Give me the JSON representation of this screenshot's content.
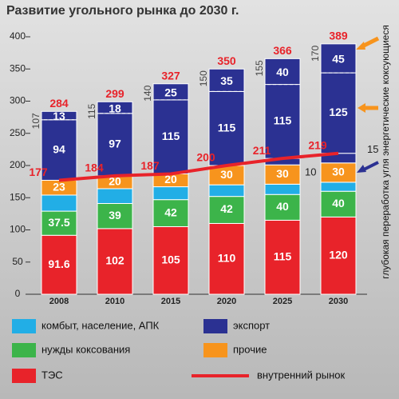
{
  "chart_data": {
    "type": "bar",
    "stacked": true,
    "title": "Развитие угольного рынка до 2030 г.",
    "categories": [
      "2008",
      "2010",
      "2015",
      "2020",
      "2025",
      "2030"
    ],
    "ylim": [
      0,
      400
    ],
    "yticks": [
      0,
      50,
      100,
      150,
      200,
      250,
      300,
      350,
      400
    ],
    "series": [
      {
        "name": "ТЭС",
        "color": "#e8232a",
        "values": [
          91.6,
          102,
          105,
          110,
          115,
          120
        ],
        "labeled": true
      },
      {
        "name": "нужды коксования",
        "color": "#3cb44a",
        "values": [
          37.5,
          39,
          42,
          42,
          40,
          40
        ],
        "labeled": true
      },
      {
        "name": "комбыт, население, АПК",
        "color": "#22aee6",
        "values": [
          25,
          23,
          20,
          18,
          16,
          14
        ],
        "labeled": false
      },
      {
        "name": "прочие",
        "color": "#f7941d",
        "values": [
          23,
          20,
          20,
          30,
          30,
          30
        ],
        "labeled": true
      },
      {
        "color": "#2b3192",
        "values": [
          null,
          null,
          null,
          null,
          10,
          15
        ],
        "labeled": "side"
      },
      {
        "name": "экспорт",
        "color": "#2b3192",
        "values": [
          94,
          97,
          115,
          115,
          115,
          125
        ],
        "labeled": true
      },
      {
        "color": "#2b3192",
        "values": [
          13,
          18,
          25,
          35,
          40,
          45
        ],
        "labeled": true,
        "dashed": true
      }
    ],
    "export_totals": [
      107,
      115,
      140,
      150,
      155,
      170
    ],
    "totals": [
      284,
      299,
      327,
      350,
      366,
      389
    ],
    "line": {
      "name": "внутренний рынок",
      "color": "#e8232a",
      "values": [
        177,
        184,
        187,
        200,
        211,
        219
      ]
    },
    "annotation": "глубокая переработка угля энергетические коксующиеся"
  }
}
